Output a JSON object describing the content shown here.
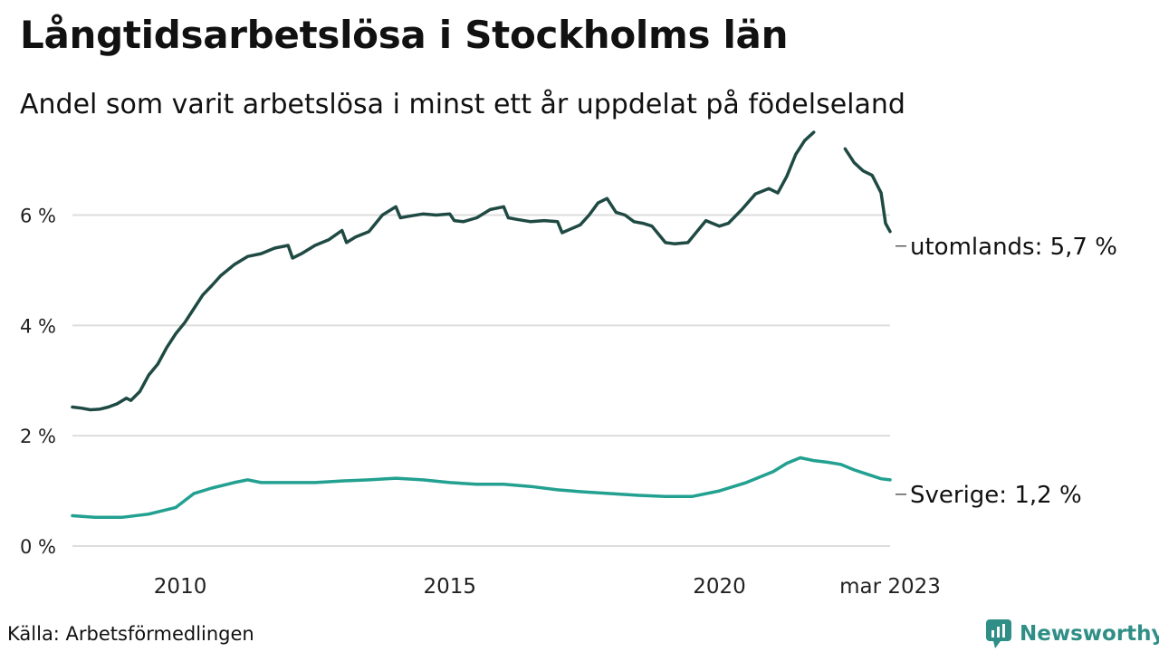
{
  "header": {
    "title": "Långtidsarbetslösa i Stockholms län",
    "subtitle": "Andel som varit arbetslösa i minst ett år uppdelat på födelseland"
  },
  "footer": {
    "source": "Källa: Arbetsförmedlingen",
    "brand": "Newsworthy"
  },
  "colors": {
    "utomlands": "#1f4a44",
    "sverige": "#22a090",
    "grid": "#dddddd",
    "brand": "#2f8f87"
  },
  "chart_data": {
    "type": "line",
    "x_ticks": [
      {
        "date": "2010-01",
        "label": "2010"
      },
      {
        "date": "2015-01",
        "label": "2015"
      },
      {
        "date": "2020-01",
        "label": "2020"
      },
      {
        "date": "2023-03",
        "label": "mar 2023"
      }
    ],
    "y_ticks": [
      {
        "value": 0,
        "label": "0 %"
      },
      {
        "value": 2,
        "label": "2 %"
      },
      {
        "value": 4,
        "label": "4 %"
      },
      {
        "value": 6,
        "label": "6 %"
      }
    ],
    "xlim": [
      "2008-01",
      "2023-03"
    ],
    "ylim": [
      0,
      7.6
    ],
    "grid": true,
    "series": [
      {
        "key": "utomlands",
        "name": "utomlands",
        "end_label": "utomlands: 5,7 %",
        "points": [
          [
            "2008-01",
            2.52
          ],
          [
            "2008-03",
            2.5
          ],
          [
            "2008-05",
            2.47
          ],
          [
            "2008-07",
            2.48
          ],
          [
            "2008-09",
            2.52
          ],
          [
            "2008-11",
            2.58
          ],
          [
            "2009-01",
            2.68
          ],
          [
            "2009-02",
            2.64
          ],
          [
            "2009-04",
            2.8
          ],
          [
            "2009-06",
            3.1
          ],
          [
            "2009-08",
            3.3
          ],
          [
            "2009-10",
            3.6
          ],
          [
            "2009-12",
            3.85
          ],
          [
            "2010-02",
            4.05
          ],
          [
            "2010-04",
            4.3
          ],
          [
            "2010-06",
            4.55
          ],
          [
            "2010-08",
            4.72
          ],
          [
            "2010-10",
            4.9
          ],
          [
            "2011-01",
            5.1
          ],
          [
            "2011-04",
            5.25
          ],
          [
            "2011-07",
            5.3
          ],
          [
            "2011-10",
            5.4
          ],
          [
            "2012-01",
            5.45
          ],
          [
            "2012-02",
            5.22
          ],
          [
            "2012-04",
            5.3
          ],
          [
            "2012-07",
            5.45
          ],
          [
            "2012-10",
            5.55
          ],
          [
            "2013-01",
            5.72
          ],
          [
            "2013-02",
            5.5
          ],
          [
            "2013-04",
            5.6
          ],
          [
            "2013-07",
            5.7
          ],
          [
            "2013-10",
            6.0
          ],
          [
            "2014-01",
            6.15
          ],
          [
            "2014-02",
            5.95
          ],
          [
            "2014-04",
            5.98
          ],
          [
            "2014-07",
            6.02
          ],
          [
            "2014-10",
            6.0
          ],
          [
            "2015-01",
            6.02
          ],
          [
            "2015-02",
            5.9
          ],
          [
            "2015-04",
            5.88
          ],
          [
            "2015-07",
            5.95
          ],
          [
            "2015-10",
            6.1
          ],
          [
            "2016-01",
            6.15
          ],
          [
            "2016-02",
            5.95
          ],
          [
            "2016-04",
            5.92
          ],
          [
            "2016-07",
            5.88
          ],
          [
            "2016-10",
            5.9
          ],
          [
            "2017-01",
            5.88
          ],
          [
            "2017-02",
            5.68
          ],
          [
            "2017-04",
            5.75
          ],
          [
            "2017-06",
            5.82
          ],
          [
            "2017-08",
            6.0
          ],
          [
            "2017-10",
            6.22
          ],
          [
            "2017-12",
            6.3
          ],
          [
            "2018-02",
            6.05
          ],
          [
            "2018-04",
            6.0
          ],
          [
            "2018-06",
            5.88
          ],
          [
            "2018-08",
            5.85
          ],
          [
            "2018-10",
            5.8
          ],
          [
            "2019-01",
            5.5
          ],
          [
            "2019-03",
            5.48
          ],
          [
            "2019-06",
            5.5
          ],
          [
            "2019-08",
            5.7
          ],
          [
            "2019-10",
            5.9
          ],
          [
            "2020-01",
            5.8
          ],
          [
            "2020-03",
            5.85
          ],
          [
            "2020-06",
            6.1
          ],
          [
            "2020-09",
            6.38
          ],
          [
            "2020-12",
            6.48
          ],
          [
            "2021-02",
            6.4
          ],
          [
            "2021-04",
            6.7
          ],
          [
            "2021-06",
            7.1
          ],
          [
            "2021-08",
            7.35
          ],
          [
            "2021-10",
            7.5
          ],
          null,
          [
            "2022-05",
            7.2
          ],
          [
            "2022-07",
            6.95
          ],
          [
            "2022-09",
            6.8
          ],
          [
            "2022-11",
            6.72
          ],
          [
            "2023-01",
            6.4
          ],
          [
            "2023-02",
            5.85
          ],
          [
            "2023-03",
            5.7
          ]
        ]
      },
      {
        "key": "sverige",
        "name": "Sverige",
        "end_label": "Sverige: 1,2 %",
        "points": [
          [
            "2008-01",
            0.55
          ],
          [
            "2008-06",
            0.52
          ],
          [
            "2008-12",
            0.52
          ],
          [
            "2009-06",
            0.58
          ],
          [
            "2009-12",
            0.7
          ],
          [
            "2010-04",
            0.95
          ],
          [
            "2010-08",
            1.05
          ],
          [
            "2011-01",
            1.15
          ],
          [
            "2011-04",
            1.2
          ],
          [
            "2011-07",
            1.15
          ],
          [
            "2012-01",
            1.15
          ],
          [
            "2012-07",
            1.15
          ],
          [
            "2013-01",
            1.18
          ],
          [
            "2013-07",
            1.2
          ],
          [
            "2014-01",
            1.23
          ],
          [
            "2014-07",
            1.2
          ],
          [
            "2015-01",
            1.15
          ],
          [
            "2015-07",
            1.12
          ],
          [
            "2016-01",
            1.12
          ],
          [
            "2016-07",
            1.08
          ],
          [
            "2017-01",
            1.02
          ],
          [
            "2017-07",
            0.98
          ],
          [
            "2018-01",
            0.95
          ],
          [
            "2018-07",
            0.92
          ],
          [
            "2019-01",
            0.9
          ],
          [
            "2019-07",
            0.9
          ],
          [
            "2020-01",
            1.0
          ],
          [
            "2020-07",
            1.15
          ],
          [
            "2021-01",
            1.35
          ],
          [
            "2021-04",
            1.5
          ],
          [
            "2021-07",
            1.6
          ],
          [
            "2021-10",
            1.55
          ],
          [
            "2022-01",
            1.52
          ],
          [
            "2022-04",
            1.48
          ],
          [
            "2022-07",
            1.38
          ],
          [
            "2022-10",
            1.3
          ],
          [
            "2023-01",
            1.22
          ],
          [
            "2023-03",
            1.2
          ]
        ]
      }
    ]
  }
}
